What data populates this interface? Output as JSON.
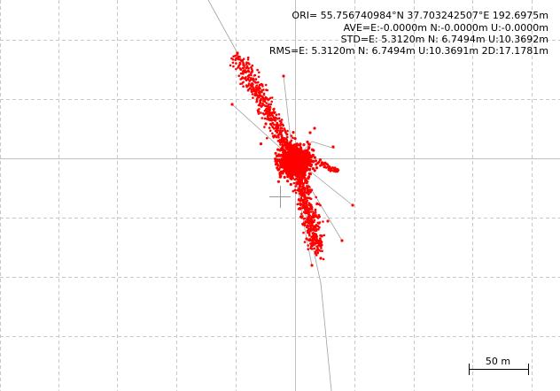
{
  "stats": {
    "ori": "ORI= 55.756740984°N   37.703242507°E 192.6975m",
    "ave": "AVE=E:-0.0000m N:-0.0000m U:-0.0000m",
    "std": "STD=E: 5.3120m N: 6.7494m U:10.3692m",
    "rms": "RMS=E: 5.3120m N: 6.7494m U:10.3691m 2D:17.1781m"
  },
  "scale_bar": {
    "label": "50 m"
  },
  "colors": {
    "points": "#ff0000",
    "track": "#a0a0a0",
    "grid_dash": "#c8c8c8",
    "axis": "#c0c0c0",
    "origin_cross": "#999999"
  },
  "icons": {
    "origin_marker": "crosshair-icon"
  }
}
